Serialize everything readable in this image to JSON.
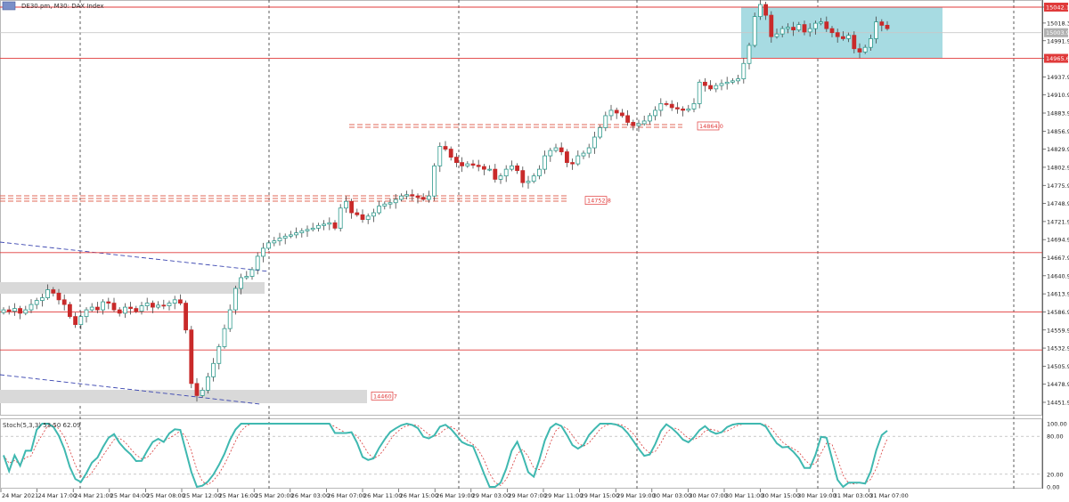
{
  "chart_data": [
    {
      "type": "candlestick",
      "title": "DE30.pm, M30: DAX Index",
      "ylim": [
        14430,
        15057
      ],
      "y_ticks": [
        "15042.1",
        "15018.3",
        "14991.9",
        "14965.6",
        "14937.9",
        "14910.9",
        "14883.9",
        "14856.9",
        "14829.9",
        "14802.9",
        "14775.9",
        "14748.9",
        "14721.9",
        "14694.9",
        "14667.9",
        "14640.9",
        "14613.9",
        "14586.9",
        "14559.9",
        "14532.9",
        "14505.9",
        "14478.9",
        "14451.9"
      ],
      "x_labels": [
        "24 Mar 2021",
        "24 Mar 17:00",
        "24 Mar 21:00",
        "25 Mar 04:00",
        "25 Mar 08:00",
        "25 Mar 12:00",
        "25 Mar 16:00",
        "25 Mar 20:00",
        "26 Mar 03:00",
        "26 Mar 07:00",
        "26 Mar 11:00",
        "26 Mar 15:00",
        "26 Mar 19:00",
        "29 Mar 03:00",
        "29 Mar 07:00",
        "29 Mar 11:00",
        "29 Mar 15:00",
        "29 Mar 19:00",
        "30 Mar 03:00",
        "30 Mar 07:00",
        "30 Mar 11:00",
        "30 Mar 15:00",
        "30 Mar 19:00",
        "31 Mar 03:00",
        "31 Mar 07:00"
      ],
      "close_values": [
        14590,
        14588,
        14592,
        14585,
        14590,
        14598,
        14604,
        14608,
        14620,
        14615,
        14605,
        14598,
        14580,
        14568,
        14580,
        14590,
        14594,
        14590,
        14602,
        14600,
        14590,
        14585,
        14594,
        14592,
        14588,
        14596,
        14600,
        14594,
        14597,
        14596,
        14600,
        14605,
        14600,
        14560,
        14480,
        14462,
        14470,
        14490,
        14510,
        14535,
        14562,
        14590,
        14622,
        14638,
        14640,
        14650,
        14670,
        14682,
        14690,
        14693,
        14697,
        14700,
        14702,
        14705,
        14708,
        14710,
        14712,
        14716,
        14718,
        14720,
        14712,
        14742,
        14752,
        14735,
        14732,
        14725,
        14730,
        14735,
        14745,
        14748,
        14750,
        14755,
        14760,
        14762,
        14760,
        14758,
        14755,
        14760,
        14805,
        14834,
        14830,
        14818,
        14810,
        14805,
        14808,
        14806,
        14804,
        14800,
        14800,
        14785,
        14790,
        14800,
        14805,
        14798,
        14780,
        14782,
        14790,
        14800,
        14820,
        14828,
        14832,
        14826,
        14810,
        14808,
        14820,
        14824,
        14832,
        14848,
        14862,
        14880,
        14888,
        14884,
        14880,
        14870,
        14865,
        14868,
        14872,
        14880,
        14888,
        14898,
        14897,
        14892,
        14890,
        14888,
        14890,
        14898,
        14930,
        14925,
        14920,
        14925,
        14928,
        14930,
        14932,
        14935,
        14958,
        14985,
        15028,
        15046,
        15030,
        14998,
        15002,
        15010,
        15012,
        15008,
        15016,
        15005,
        15010,
        15018,
        15020,
        15010,
        15004,
        14998,
        14995,
        15000,
        14980,
        14975,
        14982,
        14995,
        15020,
        15015,
        15010
      ],
      "horizontal_levels": [
        "15042.1",
        "14965.6",
        "14675.5",
        "14586.7",
        "14530.1"
      ],
      "level_labels": [
        {
          "value": "14864.0",
          "price": 14864
        },
        {
          "value": "14752.8",
          "price": 14752.8
        },
        {
          "value": "14460.7",
          "price": 14460.7
        }
      ],
      "current_price": "15003.9",
      "indicator": {
        "name": "Stoch(5,3,3) 53.50 62.09",
        "ylim": [
          0,
          100
        ],
        "y_ticks": [
          "100.00",
          "80.00",
          "20.00",
          "0.00"
        ],
        "levels": [
          80,
          20
        ]
      },
      "colors": {
        "bull": "#2e9b8e",
        "bear": "#c92a2a",
        "level_line": "#e03a3a",
        "rect_fill": "#a7dbe2",
        "stoch_main": "#3fb8b0",
        "stoch_signal": "#d83a3a"
      }
    }
  ]
}
